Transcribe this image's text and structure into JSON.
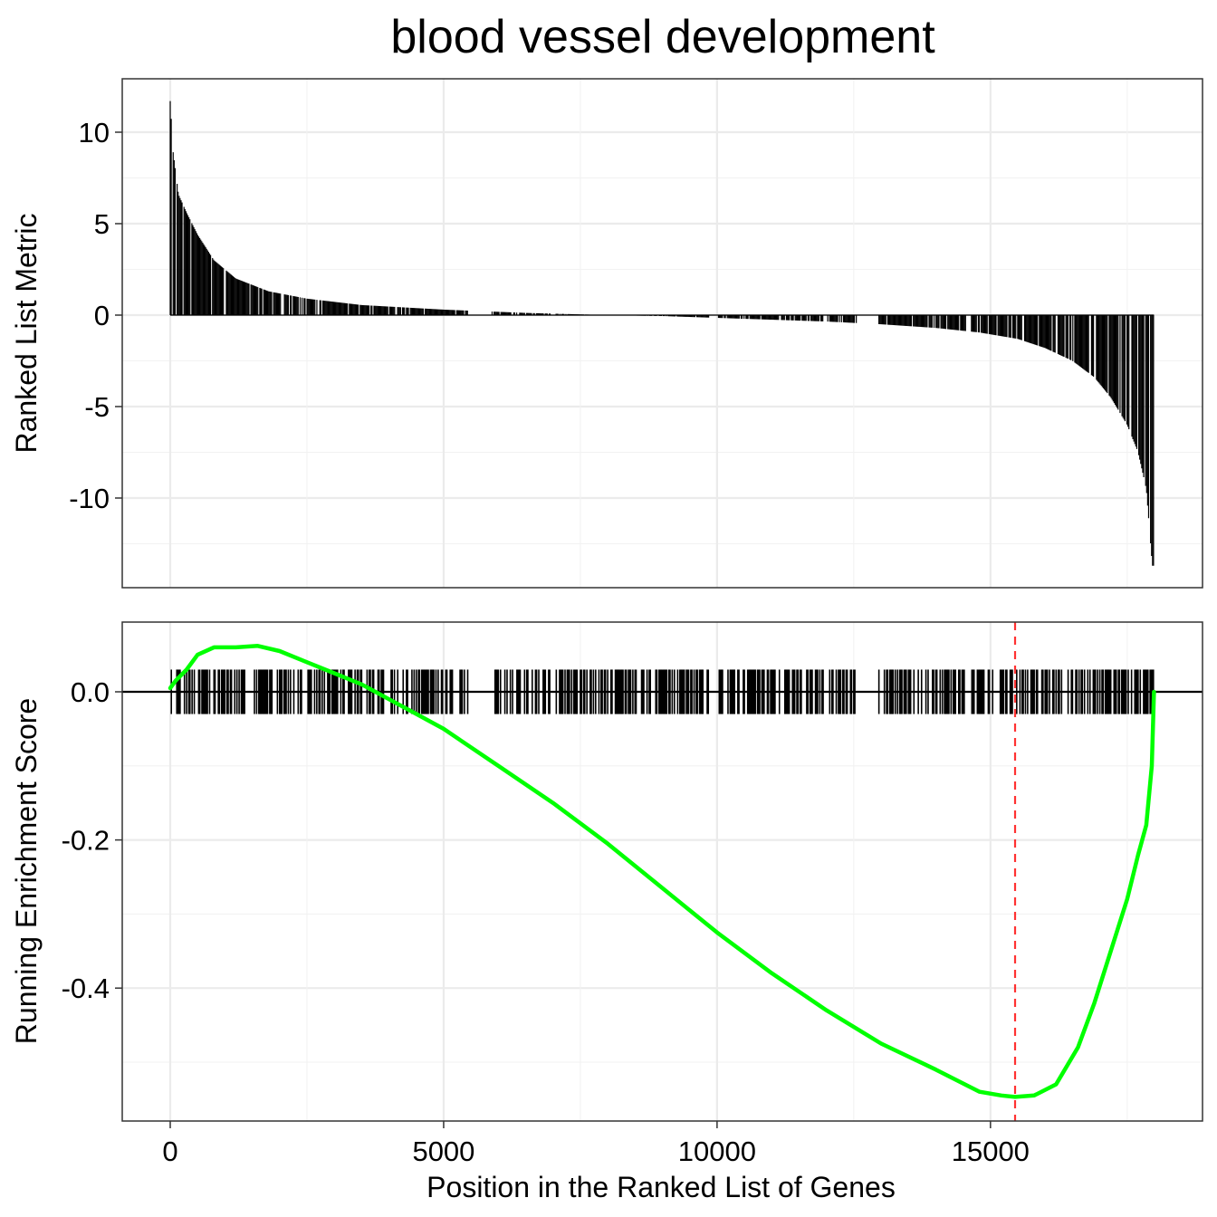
{
  "chart_data": [
    {
      "type": "bar",
      "panel": "top",
      "title": "blood vessel development",
      "ylabel": "Ranked List Metric",
      "xlim": [
        0,
        18000
      ],
      "ylim": [
        -13.7,
        11.7
      ],
      "x_ticks": [
        0,
        5000,
        10000,
        15000
      ],
      "y_ticks": [
        10,
        5,
        0,
        -5,
        -10
      ],
      "y_tick_labels": [
        "10",
        "5",
        "0",
        "-5",
        "-10"
      ],
      "grid": true,
      "values_description": "ranked metric per gene, sorted descending",
      "metric_anchor_points": {
        "x": [
          0,
          50,
          150,
          300,
          500,
          800,
          1200,
          1800,
          2500,
          3500,
          5000,
          6500,
          8000,
          9000,
          10000,
          11000,
          12000,
          13000,
          14000,
          14800,
          15500,
          16000,
          16500,
          16900,
          17200,
          17500,
          17700,
          17850,
          17960
        ],
        "y": [
          11.7,
          9.0,
          6.6,
          5.6,
          4.4,
          3.0,
          2.0,
          1.3,
          0.9,
          0.55,
          0.3,
          0.12,
          0.0,
          -0.05,
          -0.15,
          -0.25,
          -0.35,
          -0.5,
          -0.7,
          -0.95,
          -1.3,
          -1.8,
          -2.5,
          -3.4,
          -4.5,
          -6.0,
          -7.5,
          -9.5,
          -13.7
        ]
      }
    },
    {
      "type": "line",
      "panel": "bottom",
      "xlabel": "Position in the Ranked List of Genes",
      "ylabel": "Running Enrichment Score",
      "xlim": [
        0,
        18000
      ],
      "ylim": [
        -0.55,
        0.06
      ],
      "x_ticks": [
        0,
        5000,
        10000,
        15000
      ],
      "x_tick_labels": [
        "0",
        "5000",
        "10000",
        "15000"
      ],
      "y_ticks": [
        0.0,
        -0.2,
        -0.4
      ],
      "y_tick_labels": [
        "0.0",
        "-0.2",
        "-0.4"
      ],
      "grid": true,
      "series": [
        {
          "color": "#00ff00",
          "x": [
            0,
            100,
            300,
            500,
            800,
            1200,
            1600,
            2000,
            2500,
            3000,
            3500,
            4000,
            4500,
            5000,
            6000,
            7000,
            8000,
            9000,
            10000,
            11000,
            12000,
            13000,
            14000,
            14800,
            15200,
            15450,
            15800,
            16200,
            16600,
            16900,
            17200,
            17500,
            17700,
            17850,
            17950,
            17990
          ],
          "y": [
            0.005,
            0.015,
            0.03,
            0.05,
            0.06,
            0.06,
            0.062,
            0.055,
            0.04,
            0.025,
            0.01,
            -0.01,
            -0.03,
            -0.05,
            -0.1,
            -0.15,
            -0.205,
            -0.265,
            -0.325,
            -0.38,
            -0.43,
            -0.475,
            -0.51,
            -0.54,
            -0.545,
            -0.547,
            -0.545,
            -0.53,
            -0.48,
            -0.42,
            -0.35,
            -0.28,
            -0.22,
            -0.18,
            -0.1,
            0.0
          ]
        }
      ],
      "gene_hits": {
        "gap_ranges": [
          [
            5450,
            5880
          ],
          [
            6950,
            7050
          ],
          [
            9850,
            10020
          ],
          [
            11950,
            12020
          ],
          [
            12550,
            12950
          ],
          [
            14550,
            14650
          ]
        ],
        "hit_range": [
          0,
          17990
        ]
      },
      "annotations": [
        {
          "type": "vline",
          "x": 15450,
          "color": "#ff0000",
          "style": "dashed"
        },
        {
          "type": "hline",
          "y": 0.0,
          "color": "#000000"
        }
      ]
    }
  ]
}
